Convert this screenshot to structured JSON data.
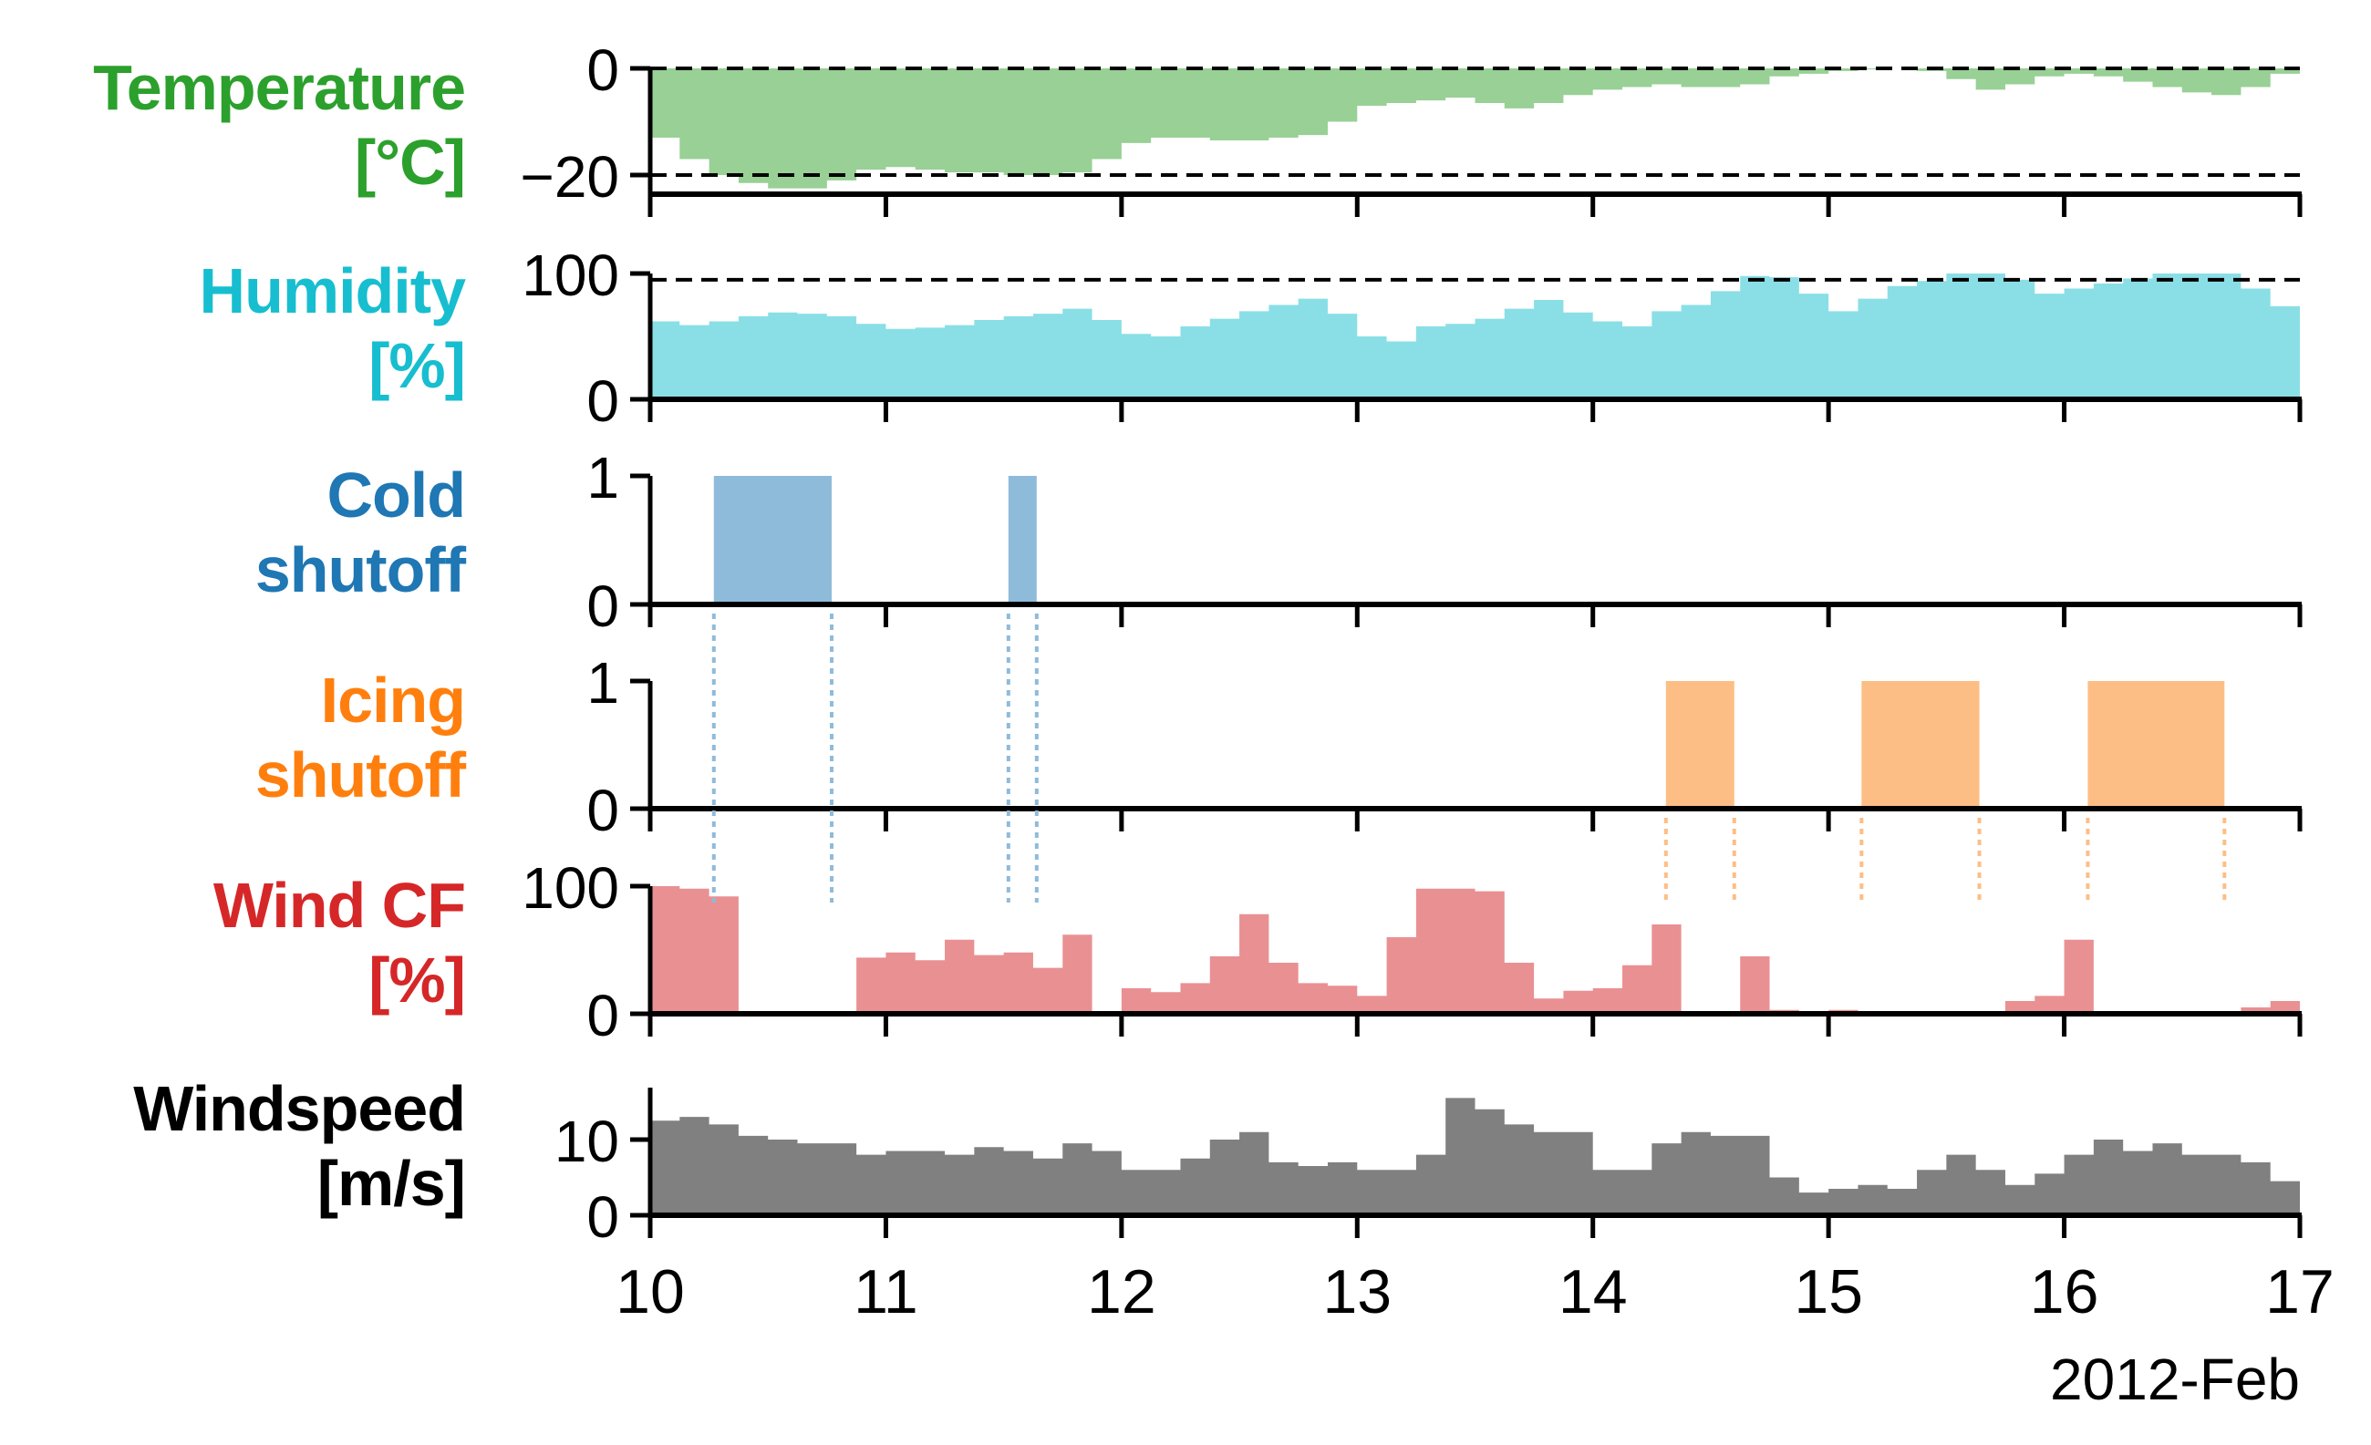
{
  "figure": {
    "x_axis": {
      "ticks": [
        "10",
        "11",
        "12",
        "13",
        "14",
        "15",
        "16",
        "17"
      ],
      "range": [
        10,
        17
      ],
      "date_label": "2012-Feb"
    }
  },
  "panels": [
    {
      "id": "temperature",
      "label_lines": [
        "Temperature",
        "[°C]"
      ],
      "color": "#2ca02c",
      "fill": "#98d095",
      "yticks": [
        "0",
        "−20"
      ]
    },
    {
      "id": "humidity",
      "label_lines": [
        "Humidity",
        "[%]"
      ],
      "color": "#17becf",
      "fill": "#8adfe6",
      "yticks": [
        "100",
        "0"
      ]
    },
    {
      "id": "cold",
      "label_lines": [
        "Cold",
        "shutoff"
      ],
      "color": "#1f77b4",
      "fill": "#8fbbda",
      "yticks": [
        "1",
        "0"
      ]
    },
    {
      "id": "icing",
      "label_lines": [
        "Icing",
        "shutoff"
      ],
      "color": "#ff7f0e",
      "fill": "#fdbe85",
      "yticks": [
        "1",
        "0"
      ]
    },
    {
      "id": "windcf",
      "label_lines": [
        "Wind CF",
        "[%]"
      ],
      "color": "#d62728",
      "fill": "#e99093",
      "yticks": [
        "100",
        "0"
      ]
    },
    {
      "id": "windspeed",
      "label_lines": [
        "Windspeed",
        "[m/s]"
      ],
      "color": "#000000",
      "fill": "#808080",
      "yticks": [
        "10",
        "0"
      ]
    }
  ],
  "chart_data": [
    {
      "type": "area",
      "title": "Temperature",
      "ylabel": "Temperature [°C]",
      "ylim": [
        -24,
        0
      ],
      "reference_lines": [
        0,
        -20
      ],
      "x_start": 10,
      "x_step_days": 0.125,
      "values": [
        -13,
        -17,
        -20,
        -21.5,
        -22.5,
        -22.5,
        -21,
        -19,
        -18.5,
        -19,
        -19.5,
        -19.5,
        -20,
        -20,
        -19.5,
        -17,
        -14,
        -13,
        -13,
        -13.5,
        -13.5,
        -13,
        -12.5,
        -10,
        -7,
        -6.5,
        -6,
        -5.5,
        -6.5,
        -7.5,
        -6.5,
        -5,
        -4,
        -3.5,
        -3,
        -3.5,
        -3.5,
        -3,
        -1.5,
        -1,
        -0.5,
        -0.2,
        0,
        -0.5,
        -2,
        -4,
        -3,
        -1.5,
        -1,
        -1.5,
        -2.5,
        -3.5,
        -4.5,
        -5,
        -3.5,
        -1
      ]
    },
    {
      "type": "area",
      "title": "Humidity",
      "ylabel": "Humidity [%]",
      "ylim": [
        0,
        100
      ],
      "reference_lines": [
        95
      ],
      "x_start": 10,
      "x_step_days": 0.125,
      "values": [
        62,
        59,
        62,
        66,
        69,
        68,
        66,
        60,
        56,
        57,
        59,
        63,
        66,
        68,
        72,
        63,
        52,
        50,
        58,
        64,
        70,
        75,
        80,
        68,
        50,
        46,
        58,
        60,
        64,
        72,
        79,
        69,
        62,
        58,
        70,
        75,
        86,
        98,
        97,
        84,
        70,
        80,
        90,
        94,
        100,
        100,
        95,
        84,
        88,
        92,
        96,
        100,
        100,
        100,
        88,
        74
      ]
    },
    {
      "type": "bar",
      "title": "Cold shutoff",
      "ylabel": "Cold shutoff",
      "ylim": [
        0,
        1
      ],
      "intervals": [
        [
          10.27,
          10.77
        ],
        [
          11.52,
          11.64
        ]
      ]
    },
    {
      "type": "bar",
      "title": "Icing shutoff",
      "ylabel": "Icing shutoff",
      "ylim": [
        0,
        1
      ],
      "intervals": [
        [
          14.31,
          14.6
        ],
        [
          15.14,
          15.64
        ],
        [
          16.1,
          16.68
        ]
      ]
    },
    {
      "type": "area",
      "title": "Wind CF",
      "ylabel": "Wind CF [%]",
      "ylim": [
        0,
        100
      ],
      "x_start": 10,
      "x_step_days": 0.125,
      "values": [
        100,
        98,
        92,
        0,
        0,
        0,
        0,
        44,
        48,
        42,
        58,
        46,
        48,
        36,
        62,
        0,
        20,
        17,
        24,
        45,
        78,
        40,
        24,
        22,
        14,
        60,
        98,
        98,
        96,
        40,
        12,
        18,
        20,
        38,
        70,
        0,
        0,
        45,
        3,
        1,
        3,
        2,
        0,
        0,
        0,
        0,
        10,
        14,
        58,
        0,
        0,
        0,
        0,
        0,
        5,
        10
      ]
    },
    {
      "type": "area",
      "title": "Windspeed",
      "ylabel": "Windspeed [m/s]",
      "ylim": [
        0,
        17
      ],
      "x_start": 10,
      "x_step_days": 0.125,
      "values": [
        12.5,
        13,
        12,
        10.5,
        10,
        9.5,
        9.5,
        8,
        8.5,
        8.5,
        8,
        9,
        8.5,
        7.5,
        9.5,
        8.5,
        6,
        6,
        7.5,
        10,
        11,
        7,
        6.5,
        7,
        6,
        6,
        8,
        15.5,
        14,
        12,
        11,
        11,
        6,
        6,
        9.5,
        11,
        10.5,
        10.5,
        5,
        3,
        3.5,
        4,
        3.5,
        6,
        8,
        6,
        4,
        5.5,
        8,
        10,
        8.5,
        9.5,
        8,
        8,
        7,
        4.5
      ]
    }
  ]
}
